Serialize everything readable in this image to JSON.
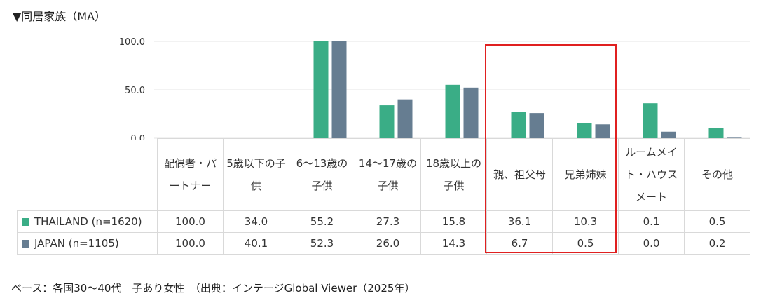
{
  "title": "▼同居家族（MA）",
  "footer": "ベース：各国30～40代　子あり女性　（出典：インテージGlobal Viewer（2025年）",
  "chart_data": {
    "type": "bar",
    "categories": [
      "配偶者・パートナー",
      "5歳以下の子供",
      "6～13歳の子供",
      "14～17歳の子供",
      "18歳以上の子供",
      "親、祖父母",
      "兄弟姉妹",
      "ルームメイト・ハウスメート",
      "その他"
    ],
    "series": [
      {
        "name": "THAILAND (n=1620)",
        "color": "#3aad86",
        "values": [
          100.0,
          34.0,
          55.2,
          27.3,
          15.8,
          36.1,
          10.3,
          0.1,
          0.5
        ]
      },
      {
        "name": "JAPAN (n=1105)",
        "color": "#667d91",
        "values": [
          100.0,
          40.1,
          52.3,
          26.0,
          14.3,
          6.7,
          0.5,
          0.0,
          0.2
        ]
      }
    ],
    "yticks": [
      "100.0",
      "50.0",
      "0.0"
    ],
    "ylim": [
      0,
      100
    ],
    "grid": true,
    "highlight_categories": [
      "親、祖父母",
      "兄弟姉妹"
    ]
  }
}
